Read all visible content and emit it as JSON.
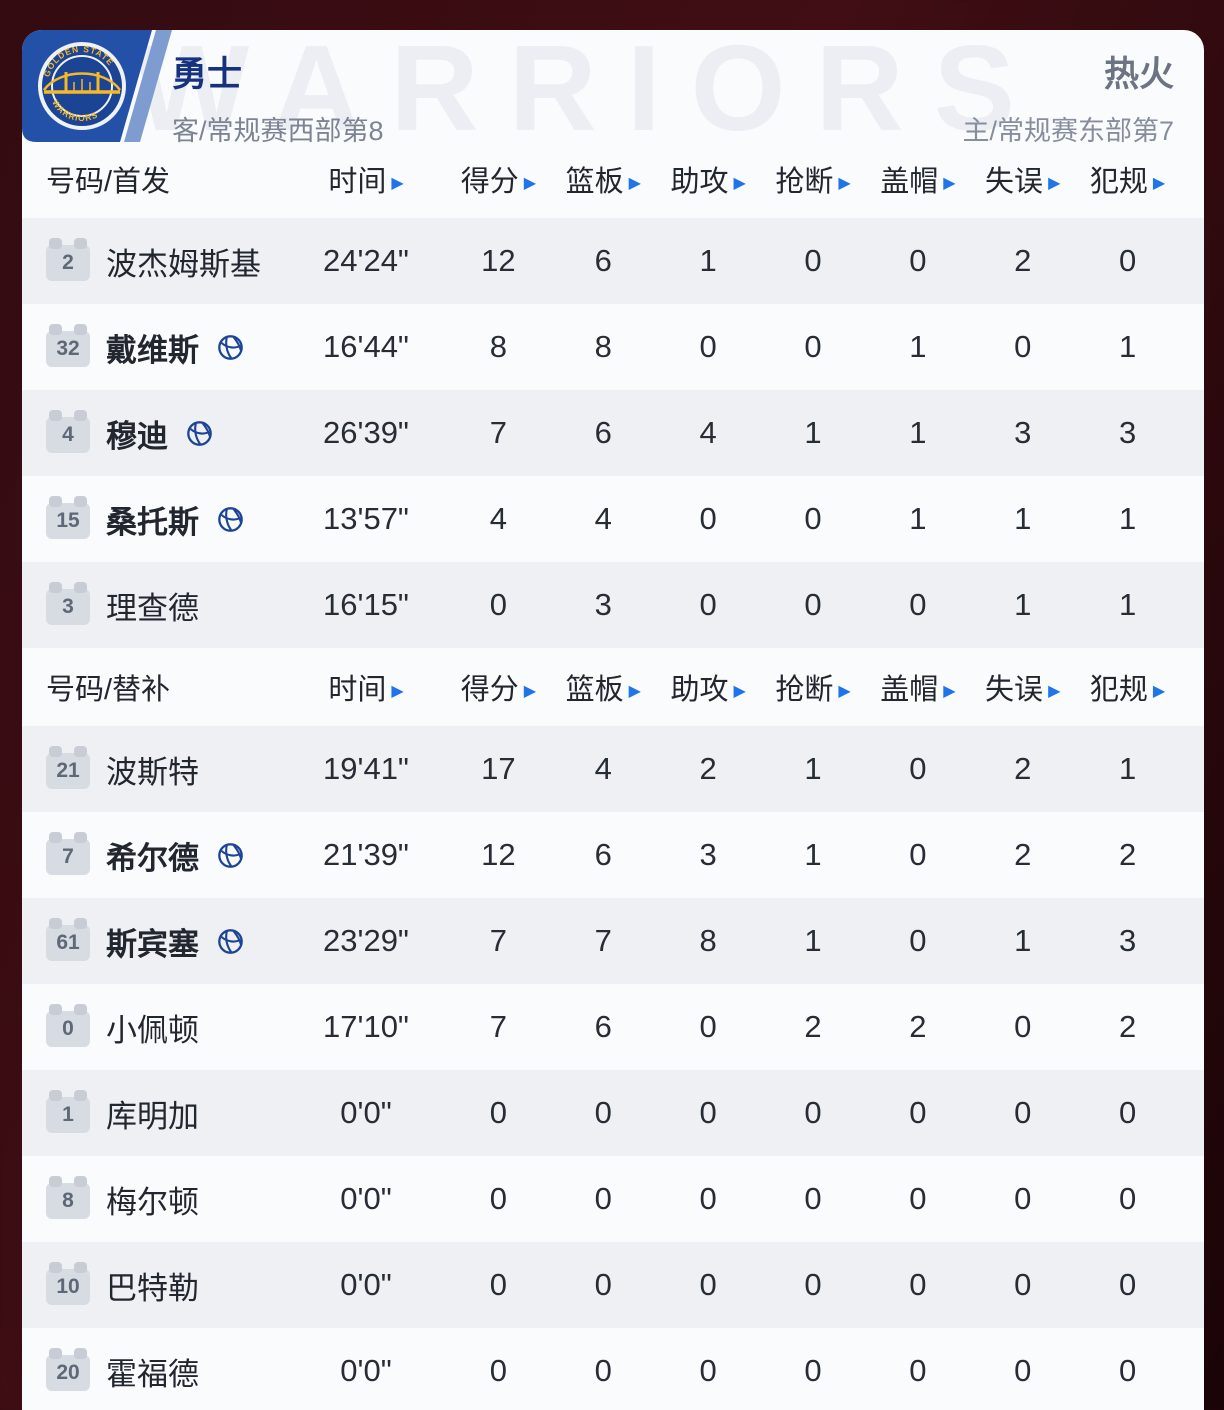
{
  "teams": {
    "away": {
      "name": "勇士",
      "detail": "客/常规赛西部第8"
    },
    "home": {
      "name": "热火",
      "detail": "主/常规赛东部第7"
    }
  },
  "watermark": "WARRIORS",
  "logo": {
    "top_text": "GOLDEN STATE",
    "bottom_text": "WARRIORS"
  },
  "table": {
    "stat_headers": [
      "时间",
      "得分",
      "篮板",
      "助攻",
      "抢断",
      "盖帽",
      "失误",
      "犯规"
    ],
    "sections": [
      {
        "label": "号码/首发",
        "players": [
          {
            "number": "2",
            "name": "波杰姆斯基",
            "on_court": false,
            "time": "24'24\"",
            "stats": [
              "12",
              "6",
              "1",
              "0",
              "0",
              "2",
              "0"
            ]
          },
          {
            "number": "32",
            "name": "戴维斯",
            "on_court": true,
            "time": "16'44\"",
            "stats": [
              "8",
              "8",
              "0",
              "0",
              "1",
              "0",
              "1"
            ]
          },
          {
            "number": "4",
            "name": "穆迪",
            "on_court": true,
            "time": "26'39\"",
            "stats": [
              "7",
              "6",
              "4",
              "1",
              "1",
              "3",
              "3"
            ]
          },
          {
            "number": "15",
            "name": "桑托斯",
            "on_court": true,
            "time": "13'57\"",
            "stats": [
              "4",
              "4",
              "0",
              "0",
              "1",
              "1",
              "1"
            ]
          },
          {
            "number": "3",
            "name": "理查德",
            "on_court": false,
            "time": "16'15\"",
            "stats": [
              "0",
              "3",
              "0",
              "0",
              "0",
              "1",
              "1"
            ]
          }
        ]
      },
      {
        "label": "号码/替补",
        "players": [
          {
            "number": "21",
            "name": "波斯特",
            "on_court": false,
            "time": "19'41\"",
            "stats": [
              "17",
              "4",
              "2",
              "1",
              "0",
              "2",
              "1"
            ]
          },
          {
            "number": "7",
            "name": "希尔德",
            "on_court": true,
            "time": "21'39\"",
            "stats": [
              "12",
              "6",
              "3",
              "1",
              "0",
              "2",
              "2"
            ]
          },
          {
            "number": "61",
            "name": "斯宾塞",
            "on_court": true,
            "time": "23'29\"",
            "stats": [
              "7",
              "7",
              "8",
              "1",
              "0",
              "1",
              "3"
            ]
          },
          {
            "number": "0",
            "name": "小佩顿",
            "on_court": false,
            "time": "17'10\"",
            "stats": [
              "7",
              "6",
              "0",
              "2",
              "2",
              "0",
              "2"
            ]
          },
          {
            "number": "1",
            "name": "库明加",
            "on_court": false,
            "time": "0'0\"",
            "stats": [
              "0",
              "0",
              "0",
              "0",
              "0",
              "0",
              "0"
            ]
          },
          {
            "number": "8",
            "name": "梅尔顿",
            "on_court": false,
            "time": "0'0\"",
            "stats": [
              "0",
              "0",
              "0",
              "0",
              "0",
              "0",
              "0"
            ]
          },
          {
            "number": "10",
            "name": "巴特勒",
            "on_court": false,
            "time": "0'0\"",
            "stats": [
              "0",
              "0",
              "0",
              "0",
              "0",
              "0",
              "0"
            ]
          },
          {
            "number": "20",
            "name": "霍福德",
            "on_court": false,
            "time": "0'0\"",
            "stats": [
              "0",
              "0",
              "0",
              "0",
              "0",
              "0",
              "0"
            ]
          }
        ]
      }
    ]
  },
  "colors": {
    "accent_blue": "#1f74e8",
    "team_title_blue": "#16317d",
    "plate_blue": "#2351a8",
    "plate_stripe": "#7e9cd0",
    "logo_gold": "#f5b826",
    "card_bg": "#fafbfd",
    "row_alt": "#eef0f4",
    "frame_bg": "#330b11",
    "muted_gray": "#7c8494"
  }
}
